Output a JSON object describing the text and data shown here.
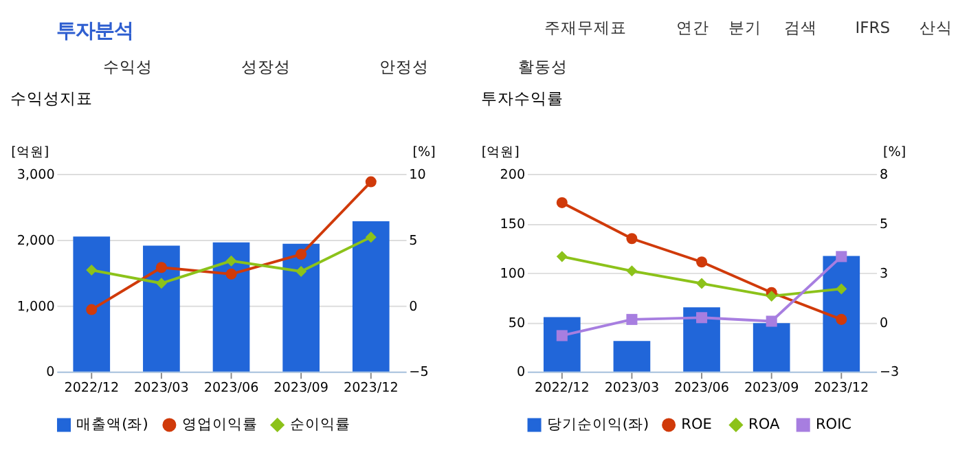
{
  "chart_data": [
    {
      "type": "other",
      "title": "투자분석",
      "annotations": [
        "주재무제표",
        "연간",
        "분기",
        "검색",
        "IFRS",
        "산식",
        "수익성",
        "성장성",
        "안정성",
        "활동성"
      ]
    },
    {
      "type": "bar",
      "title": "수익성지표",
      "ylabel": "[억원]",
      "y2label": "[%]",
      "categories": [
        "2022/12",
        "2023/03",
        "2023/06",
        "2023/09",
        "2023/12"
      ],
      "ylim": [
        0,
        3000
      ],
      "yticks": [
        0,
        {
          "value": 1000,
          "label": "1,000"
        },
        {
          "value": 2000,
          "label": "2,000"
        },
        {
          "value": 3000,
          "label": "3,000"
        }
      ],
      "y2lim": [
        -5,
        10
      ],
      "y2ticks": [
        -5,
        0,
        5,
        10
      ],
      "grid": "y",
      "legend": "bottom",
      "series": [
        {
          "name": "매출액(좌)",
          "type": "bar",
          "color": "#2166d9",
          "values": [
            2050,
            1910,
            1960,
            1940,
            2280
          ]
        },
        {
          "name": "영업이익률",
          "type": "line",
          "axis": "y2",
          "marker": "circle",
          "color": "#d03a0a",
          "values": [
            -0.3,
            2.9,
            2.4,
            3.9,
            9.4
          ]
        },
        {
          "name": "순이익률",
          "type": "line",
          "axis": "y2",
          "marker": "diamond",
          "color": "#8cc21a",
          "values": [
            2.7,
            1.7,
            3.4,
            2.6,
            5.2
          ]
        }
      ]
    },
    {
      "type": "bar",
      "title": "투자수익률",
      "ylabel": "[억원]",
      "y2label": "[%]",
      "categories": [
        "2022/12",
        "2023/03",
        "2023/06",
        "2023/09",
        "2023/12"
      ],
      "ylim": [
        0,
        200
      ],
      "yticks": [
        0,
        50,
        100,
        150,
        200
      ],
      "y2lim": [
        -3,
        8
      ],
      "y2ticks": [
        -3,
        {
          "value": -0.25,
          "label": "0"
        },
        {
          "value": 2.5,
          "label": "3"
        },
        {
          "value": 5.25,
          "label": "5"
        },
        8
      ],
      "grid": "y",
      "legend": "bottom",
      "series": [
        {
          "name": "당기순이익(좌)",
          "type": "bar",
          "color": "#2166d9",
          "values": [
            55,
            31,
            65,
            49,
            117
          ]
        },
        {
          "name": "ROE",
          "type": "line",
          "axis": "y2",
          "marker": "circle",
          "color": "#d03a0a",
          "values": [
            6.4,
            4.4,
            3.1,
            1.4,
            -0.1
          ]
        },
        {
          "name": "ROA",
          "type": "line",
          "axis": "y2",
          "marker": "diamond",
          "color": "#8cc21a",
          "values": [
            3.4,
            2.6,
            1.9,
            1.2,
            1.6
          ]
        },
        {
          "name": "ROIC",
          "type": "line",
          "axis": "y2",
          "marker": "square",
          "color": "#a77ee0",
          "values": [
            -1.0,
            -0.1,
            0.0,
            -0.2,
            3.4
          ]
        }
      ]
    }
  ]
}
